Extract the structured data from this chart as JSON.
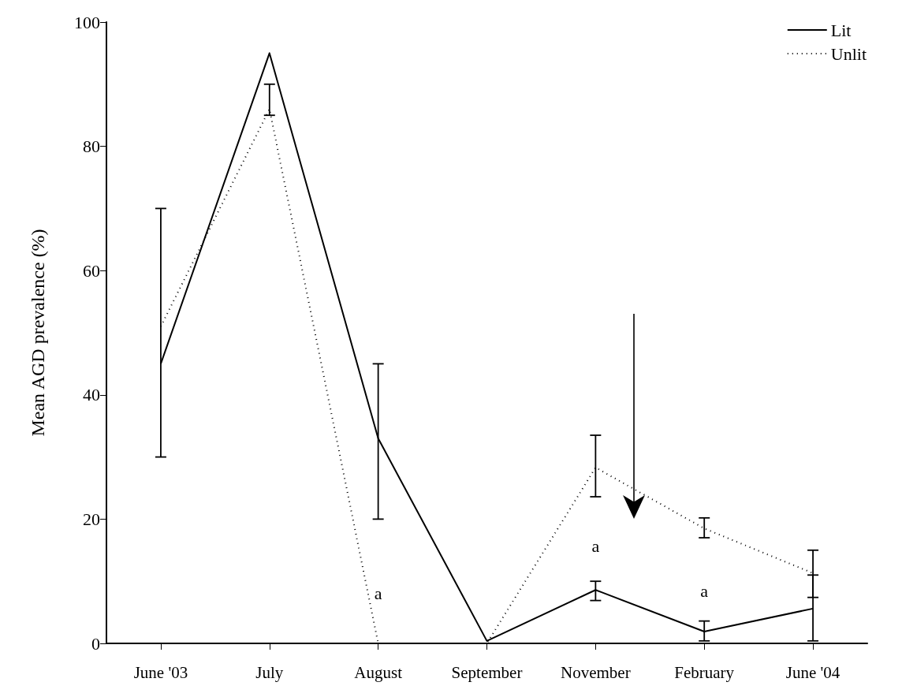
{
  "chart_data": {
    "type": "line",
    "ylabel": "Mean AGD prevalence (%)",
    "categories": [
      "June '03",
      "July",
      "August",
      "September",
      "November",
      "February",
      "June '04"
    ],
    "series": [
      {
        "name": "Lit",
        "color": "#000000",
        "line_style": "solid",
        "values": [
          45,
          95,
          33,
          0.4,
          8.6,
          1.9,
          5.6
        ],
        "errors": [
          [
            30,
            70
          ],
          null,
          [
            20,
            45
          ],
          null,
          [
            6.9,
            10
          ],
          [
            0.4,
            3.6
          ],
          [
            0.4,
            11
          ]
        ]
      },
      {
        "name": "Unlit",
        "color": "#000000",
        "line_style": "dotted",
        "values": [
          51,
          86,
          0,
          0,
          28.3,
          18.5,
          11.3
        ],
        "errors": [
          null,
          [
            85,
            90
          ],
          null,
          null,
          [
            23.6,
            33.5
          ],
          [
            17,
            20.2
          ],
          [
            7.4,
            15
          ]
        ]
      }
    ],
    "annotations": [
      "a",
      "a",
      "a"
    ],
    "ylim": [
      0,
      100
    ],
    "yticks": [
      0,
      20,
      40,
      60,
      80,
      100
    ],
    "grid": false,
    "legend": "top right",
    "marker": "none"
  }
}
